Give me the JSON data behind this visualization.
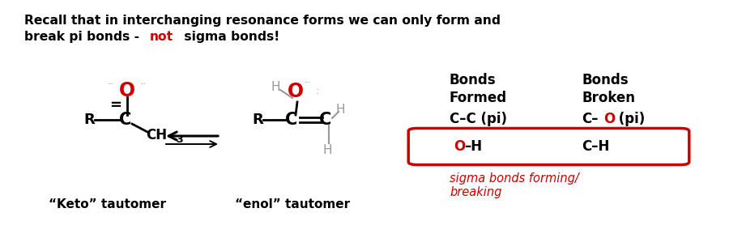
{
  "fig_width": 9.0,
  "fig_height": 2.94,
  "dpi": 100,
  "bg_color": "#ffffff",
  "red_color": "#cc0000",
  "black_color": "#000000",
  "gray_color": "#999999",
  "keto_label": "“Keto” tautomer",
  "enol_label": "“enol” tautomer",
  "sigma_text_1": "sigma bonds forming/",
  "sigma_text_2": "breaking"
}
